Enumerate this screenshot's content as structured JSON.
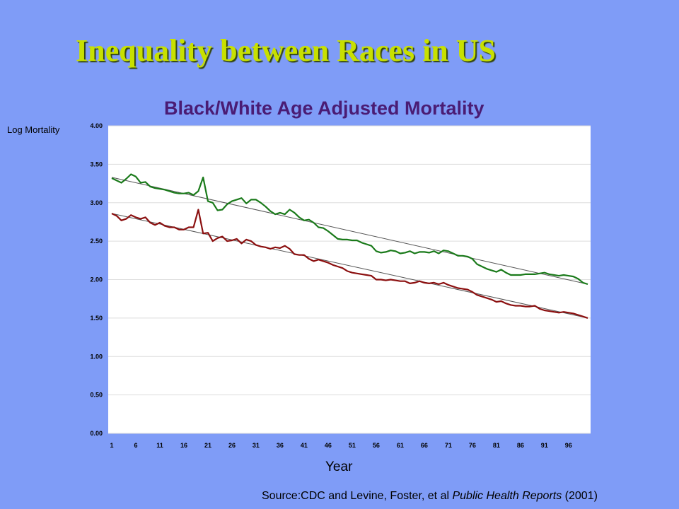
{
  "slide_title": "Inequality between Races in US",
  "source": {
    "prefix": "Source:CDC and Levine, Foster, et al ",
    "journal": "Public Health Reports",
    "suffix": " (2001)"
  },
  "chart_data": {
    "type": "line",
    "title": "Black/White Age Adjusted Mortality",
    "xlabel": "Year",
    "ylabel": "Log Mortality",
    "ylim": [
      0,
      4
    ],
    "xlim": [
      1,
      100
    ],
    "x_ticks": [
      "1",
      "6",
      "11",
      "16",
      "21",
      "26",
      "31",
      "36",
      "41",
      "46",
      "51",
      "56",
      "61",
      "66",
      "71",
      "76",
      "81",
      "86",
      "91",
      "96"
    ],
    "y_ticks": [
      "0.00",
      "0.50",
      "1.00",
      "1.50",
      "2.00",
      "2.50",
      "3.00",
      "3.50",
      "4.00"
    ],
    "grid": true,
    "legend": "none",
    "colors": {
      "upper": "#1a7a1a",
      "lower": "#8b0f0f",
      "trend": "#555555",
      "plot_bg": "#ffffff"
    },
    "series": [
      {
        "values": [
          3.32,
          3.29,
          3.26,
          3.31,
          3.37,
          3.34,
          3.26,
          3.27,
          3.21,
          3.19,
          3.18,
          3.17,
          3.15,
          3.13,
          3.12,
          3.12,
          3.13,
          3.1,
          3.15,
          3.33,
          3.02,
          3.0,
          2.9,
          2.91,
          2.98,
          3.02,
          3.04,
          3.06,
          2.99,
          3.04,
          3.04,
          3.0,
          2.95,
          2.89,
          2.85,
          2.87,
          2.85,
          2.91,
          2.87,
          2.81,
          2.77,
          2.78,
          2.74,
          2.68,
          2.67,
          2.63,
          2.58,
          2.53,
          2.52,
          2.52,
          2.51,
          2.51,
          2.48,
          2.46,
          2.44,
          2.37,
          2.35,
          2.36,
          2.38,
          2.37,
          2.34,
          2.35,
          2.37,
          2.34,
          2.36,
          2.36,
          2.35,
          2.37,
          2.34,
          2.38,
          2.37,
          2.34,
          2.31,
          2.31,
          2.3,
          2.27,
          2.2,
          2.17,
          2.14,
          2.12,
          2.1,
          2.13,
          2.09,
          2.06,
          2.06,
          2.06,
          2.07,
          2.07,
          2.07,
          2.08,
          2.09,
          2.07,
          2.06,
          2.05,
          2.06,
          2.05,
          2.04,
          2.01,
          1.96,
          1.94
        ]
      },
      {
        "values": [
          2.86,
          2.83,
          2.77,
          2.79,
          2.84,
          2.81,
          2.79,
          2.81,
          2.74,
          2.71,
          2.74,
          2.7,
          2.68,
          2.68,
          2.65,
          2.65,
          2.68,
          2.68,
          2.91,
          2.6,
          2.61,
          2.5,
          2.54,
          2.56,
          2.5,
          2.51,
          2.53,
          2.47,
          2.52,
          2.5,
          2.45,
          2.43,
          2.42,
          2.4,
          2.42,
          2.41,
          2.44,
          2.4,
          2.33,
          2.32,
          2.32,
          2.27,
          2.24,
          2.26,
          2.24,
          2.22,
          2.19,
          2.17,
          2.15,
          2.11,
          2.09,
          2.08,
          2.07,
          2.06,
          2.05,
          2.0,
          2.0,
          1.99,
          2.0,
          1.99,
          1.98,
          1.98,
          1.95,
          1.96,
          1.98,
          1.96,
          1.95,
          1.96,
          1.94,
          1.96,
          1.93,
          1.91,
          1.89,
          1.88,
          1.87,
          1.84,
          1.8,
          1.78,
          1.76,
          1.74,
          1.71,
          1.72,
          1.69,
          1.67,
          1.66,
          1.66,
          1.65,
          1.65,
          1.66,
          1.62,
          1.6,
          1.59,
          1.58,
          1.57,
          1.58,
          1.57,
          1.56,
          1.54,
          1.52,
          1.5
        ]
      }
    ],
    "trend_lines": [
      {
        "from": [
          1,
          3.33
        ],
        "to": [
          100,
          1.94
        ]
      },
      {
        "from": [
          1,
          2.86
        ],
        "to": [
          100,
          1.5
        ]
      }
    ]
  }
}
